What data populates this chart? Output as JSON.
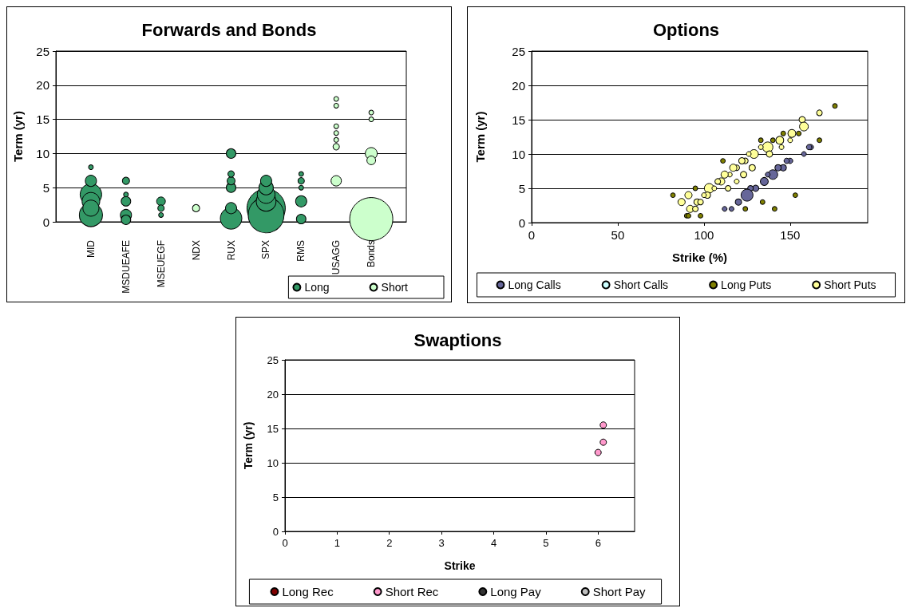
{
  "chart_data": [
    {
      "type": "bubble",
      "title": "Forwards and Bonds",
      "ylabel": "Term (yr)",
      "categories": [
        "MID",
        "MSDUEAFE",
        "MSEUEGF",
        "NDX",
        "RUX",
        "SPX",
        "RMS",
        "USAGG",
        "Bonds"
      ],
      "ylim": [
        0,
        25
      ],
      "yticks": [
        0,
        5,
        10,
        15,
        20,
        25
      ],
      "grid": "y",
      "legend": "bottom right",
      "marker": "circle",
      "series": [
        {
          "name": "Long",
          "color": "#339966",
          "x": [
            "MID",
            "MID",
            "MID",
            "MID",
            "MID",
            "MID",
            "MSDUEAFE",
            "MSDUEAFE",
            "MSDUEAFE",
            "MSDUEAFE",
            "MSDUEAFE",
            "MSEUEGF",
            "MSEUEGF",
            "MSEUEGF",
            "RUX",
            "RUX",
            "RUX",
            "RUX",
            "RUX",
            "RUX",
            "SPX",
            "SPX",
            "SPX",
            "SPX",
            "SPX",
            "SPX",
            "RMS",
            "RMS",
            "RMS",
            "RMS",
            "RMS"
          ],
          "values": [
            1,
            4,
            3,
            2,
            6,
            8,
            1,
            0.3,
            3,
            6,
            4,
            3,
            2,
            1,
            0.5,
            2,
            5,
            10,
            6,
            7,
            2,
            1,
            3,
            4,
            5,
            6,
            3,
            0.4,
            6,
            7,
            5
          ],
          "sizes": [
            0.29,
            0.25,
            0.17,
            0.14,
            0.067,
            0.012,
            0.067,
            0.049,
            0.049,
            0.028,
            0.012,
            0.041,
            0.022,
            0.012,
            0.25,
            0.067,
            0.049,
            0.049,
            0.034,
            0.022,
            0.79,
            0.69,
            0.21,
            0.17,
            0.11,
            0.067,
            0.067,
            0.049,
            0.022,
            0.012,
            0.012
          ]
        },
        {
          "name": "Short",
          "color": "#ccffcc",
          "x": [
            "NDX",
            "USAGG",
            "USAGG",
            "USAGG",
            "USAGG",
            "USAGG",
            "USAGG",
            "USAGG",
            "Bonds",
            "Bonds",
            "Bonds",
            "Bonds",
            "Bonds"
          ],
          "values": [
            2,
            6,
            11,
            12,
            13,
            14,
            17,
            18,
            0.4,
            10,
            9,
            16,
            15
          ],
          "sizes": [
            0.028,
            0.058,
            0.022,
            0.012,
            0.012,
            0.012,
            0.012,
            0.012,
            1,
            0.077,
            0.041,
            0.012,
            0.012
          ]
        }
      ]
    },
    {
      "type": "bubble",
      "title": "Options",
      "xlabel": "Strike (%)",
      "ylabel": "Term (yr)",
      "xlim": [
        0,
        195
      ],
      "xticks": [
        0,
        50,
        100,
        150
      ],
      "ylim": [
        0,
        25
      ],
      "yticks": [
        0,
        5,
        10,
        15,
        20,
        25
      ],
      "grid": "y",
      "legend": "bottom",
      "marker": "circle",
      "series": [
        {
          "name": "Long Calls",
          "color": "#666699",
          "x": [
            162,
            161,
            158,
            150,
            148,
            146,
            143,
            140,
            137,
            135,
            130,
            127,
            125,
            120,
            112,
            116
          ],
          "values": [
            11,
            11,
            10,
            9,
            9,
            8,
            8,
            7,
            7,
            6,
            5,
            5,
            4,
            3,
            2,
            2
          ],
          "sizes": [
            0.2,
            0.2,
            0.16,
            0.2,
            0.2,
            0.28,
            0.28,
            0.64,
            0.16,
            0.44,
            0.28,
            0.22,
            1,
            0.28,
            0.16,
            0.16
          ]
        },
        {
          "name": "Short Calls",
          "color": "#ccffff"
        },
        {
          "name": "Long Puts",
          "color": "#808000",
          "x": [
            176,
            167,
            155,
            146,
            133,
            140,
            111,
            95,
            82,
            153,
            134,
            124,
            141,
            98,
            90,
            91
          ],
          "values": [
            17,
            12,
            13,
            13,
            12,
            12,
            9,
            5,
            4,
            4,
            3,
            2,
            2,
            1,
            1,
            1
          ],
          "sizes": [
            0.15,
            0.15,
            0.15,
            0.15,
            0.15,
            0.15,
            0.15,
            0.15,
            0.15,
            0.15,
            0.15,
            0.15,
            0.15,
            0.15,
            0.15,
            0.15
          ]
        },
        {
          "name": "Short Puts",
          "color": "#ffff99",
          "x": [
            167,
            157,
            158,
            151,
            150,
            144,
            145,
            137,
            133,
            138,
            129,
            126,
            128,
            123,
            124,
            122,
            119,
            117,
            115,
            112,
            110,
            108,
            119,
            114,
            103,
            106,
            102,
            100,
            91,
            96,
            98,
            87,
            92,
            95
          ],
          "values": [
            16,
            15,
            14,
            13,
            12,
            12,
            11,
            11,
            11,
            10,
            10,
            10,
            8,
            7,
            9,
            9,
            8,
            8,
            7,
            7,
            6,
            6,
            6,
            5,
            5,
            5,
            4,
            4,
            4,
            3,
            3,
            3,
            2,
            2
          ],
          "sizes": [
            0.22,
            0.28,
            0.54,
            0.44,
            0.16,
            0.44,
            0.16,
            0.75,
            0.16,
            0.28,
            0.54,
            0.16,
            0.28,
            0.28,
            0.22,
            0.28,
            0.22,
            0.36,
            0.16,
            0.36,
            0.36,
            0.22,
            0.16,
            0.22,
            0.64,
            0.16,
            0.28,
            0.16,
            0.36,
            0.28,
            0.22,
            0.36,
            0.36,
            0.22
          ]
        }
      ]
    },
    {
      "type": "scatter",
      "title": "Swaptions",
      "xlabel": "Strike",
      "ylabel": "Term (yr)",
      "xlim": [
        0,
        6.7
      ],
      "xticks": [
        0,
        1,
        2,
        3,
        4,
        5,
        6
      ],
      "ylim": [
        0,
        25
      ],
      "yticks": [
        0,
        5,
        10,
        15,
        20,
        25
      ],
      "grid": "y",
      "legend": "bottom",
      "marker": "circle",
      "series": [
        {
          "name": "Long Rec",
          "color": "#800000"
        },
        {
          "name": "Short Rec",
          "color": "#ff99cc",
          "x": [
            6.1,
            6.1,
            6.0
          ],
          "values": [
            15.5,
            13,
            11.5
          ]
        },
        {
          "name": "Long Pay",
          "color": "#333333"
        },
        {
          "name": "Short Pay",
          "color": "#c0c0c0"
        }
      ]
    }
  ]
}
